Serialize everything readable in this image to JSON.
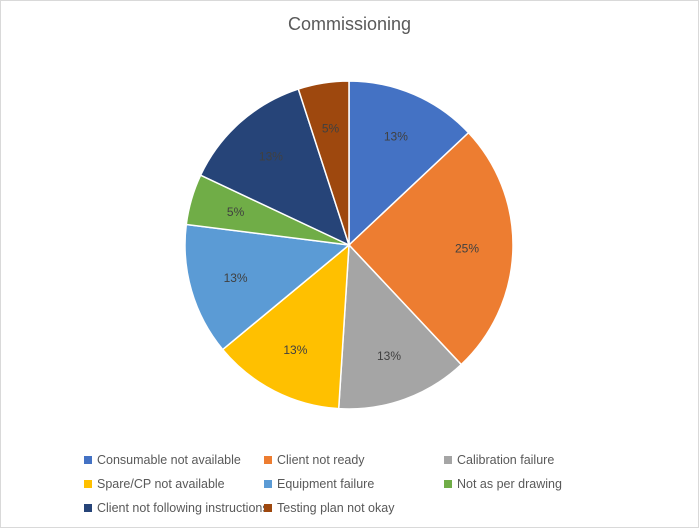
{
  "chart_data": {
    "type": "pie",
    "title": "Commissioning",
    "categories": [
      "Consumable not available",
      "Client not ready",
      "Calibration failure",
      "Spare/CP not available",
      "Equipment failure",
      "Not as per drawing",
      "Client not following instructions",
      "Testing plan not okay"
    ],
    "values": [
      13,
      25,
      13,
      13,
      13,
      5,
      13,
      5
    ],
    "data_labels": [
      "13%",
      "25%",
      "13%",
      "13%",
      "13%",
      "5%",
      "13%",
      "5%"
    ],
    "colors": [
      "#4472c4",
      "#ed7d31",
      "#a5a5a5",
      "#ffc000",
      "#5b9bd5",
      "#70ad47",
      "#264478",
      "#9e480e"
    ],
    "legend_position": "bottom",
    "start_angle": "12 o'clock, clockwise"
  }
}
